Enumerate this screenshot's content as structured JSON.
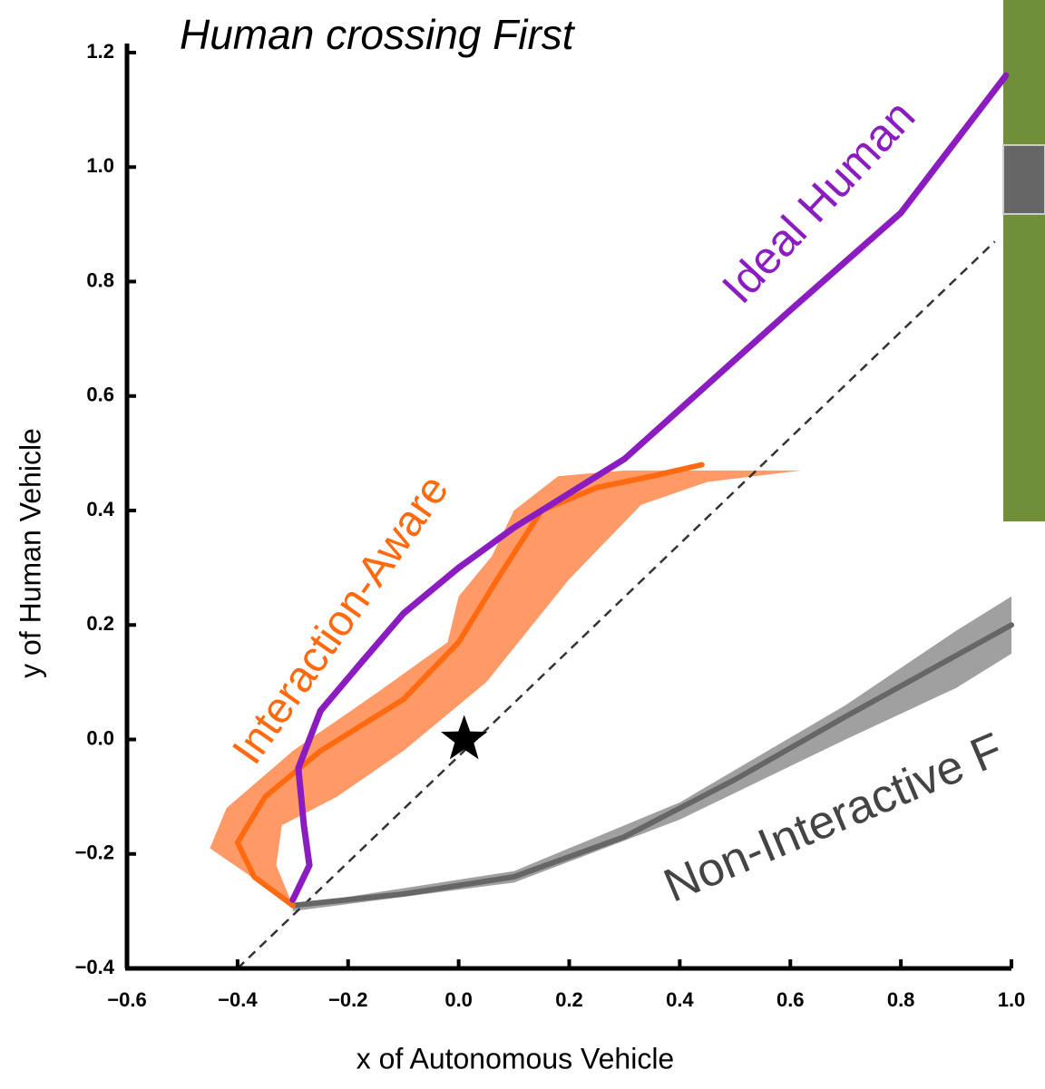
{
  "chart_data": {
    "type": "line",
    "title": "Human crossing First",
    "xlabel": "x of Autonomous Vehicle",
    "ylabel": "y of Human Vehicle",
    "xlim": [
      -0.6,
      1.0
    ],
    "ylim": [
      -0.4,
      1.2
    ],
    "xticks": [
      {
        "value": -0.6,
        "label": "−0.6"
      },
      {
        "value": -0.4,
        "label": "−0.4"
      },
      {
        "value": -0.2,
        "label": "−0.2"
      },
      {
        "value": 0,
        "label": "0.0"
      },
      0.2,
      0.4,
      0.6,
      0.8,
      {
        "value": 1,
        "label": "1.0"
      }
    ],
    "yticks": [
      {
        "value": -0.4,
        "label": "−0.4"
      },
      {
        "value": -0.2,
        "label": "−0.2"
      },
      {
        "value": 0,
        "label": "0.0"
      },
      0.2,
      0.4,
      0.6,
      0.8,
      {
        "value": 1,
        "label": "1.0"
      },
      1.2
    ],
    "series": [
      {
        "name": "Ideal Human",
        "color": "#8a1cc0",
        "x": [
          -0.3,
          -0.27,
          -0.28,
          -0.29,
          -0.25,
          -0.18,
          -0.1,
          0.0,
          0.1,
          0.2,
          0.3,
          0.45,
          0.6,
          0.8,
          0.99
        ],
        "values": [
          -0.28,
          -0.22,
          -0.15,
          -0.05,
          0.05,
          0.13,
          0.22,
          0.3,
          0.37,
          0.43,
          0.49,
          0.62,
          0.75,
          0.92,
          1.16
        ]
      },
      {
        "name": "Interaction-Aware",
        "color": "#ff6a10",
        "band_color": "#ff9a66",
        "x": [
          -0.3,
          -0.37,
          -0.4,
          -0.35,
          -0.25,
          -0.1,
          0.0,
          0.07,
          0.15,
          0.25,
          0.35,
          0.44
        ],
        "values": [
          -0.29,
          -0.24,
          -0.18,
          -0.1,
          -0.02,
          0.07,
          0.17,
          0.28,
          0.4,
          0.44,
          0.46,
          0.48
        ],
        "band_x": [
          -0.3,
          -0.45,
          -0.42,
          -0.3,
          -0.15,
          -0.02,
          0.0,
          0.06,
          0.1,
          0.18,
          0.3,
          0.62,
          0.45,
          0.33,
          0.2,
          0.05,
          -0.1,
          -0.22,
          -0.32,
          -0.33,
          -0.3
        ],
        "band_y": [
          -0.29,
          -0.19,
          -0.12,
          -0.02,
          0.08,
          0.17,
          0.25,
          0.32,
          0.4,
          0.46,
          0.47,
          0.47,
          0.45,
          0.41,
          0.28,
          0.1,
          -0.02,
          -0.1,
          -0.15,
          -0.22,
          -0.29
        ]
      },
      {
        "name": "Non-Interactive F",
        "color": "#666666",
        "band_color": "#a0a0a0",
        "x": [
          -0.3,
          -0.1,
          0.1,
          0.3,
          0.5,
          0.7,
          0.85,
          1.0
        ],
        "values": [
          -0.29,
          -0.27,
          -0.24,
          -0.17,
          -0.07,
          0.04,
          0.12,
          0.2
        ],
        "band_x": [
          -0.3,
          0.1,
          0.4,
          0.7,
          0.9,
          1.0,
          1.0,
          0.9,
          0.7,
          0.4,
          0.1,
          -0.3
        ],
        "band_y": [
          -0.29,
          -0.23,
          -0.11,
          0.06,
          0.19,
          0.25,
          0.15,
          0.09,
          0.0,
          -0.14,
          -0.25,
          -0.3
        ]
      }
    ],
    "reference": {
      "x": [
        -0.4,
        0.97
      ],
      "values": [
        -0.4,
        0.87
      ]
    },
    "marker": {
      "x": 0.01,
      "y": 0.0
    }
  }
}
